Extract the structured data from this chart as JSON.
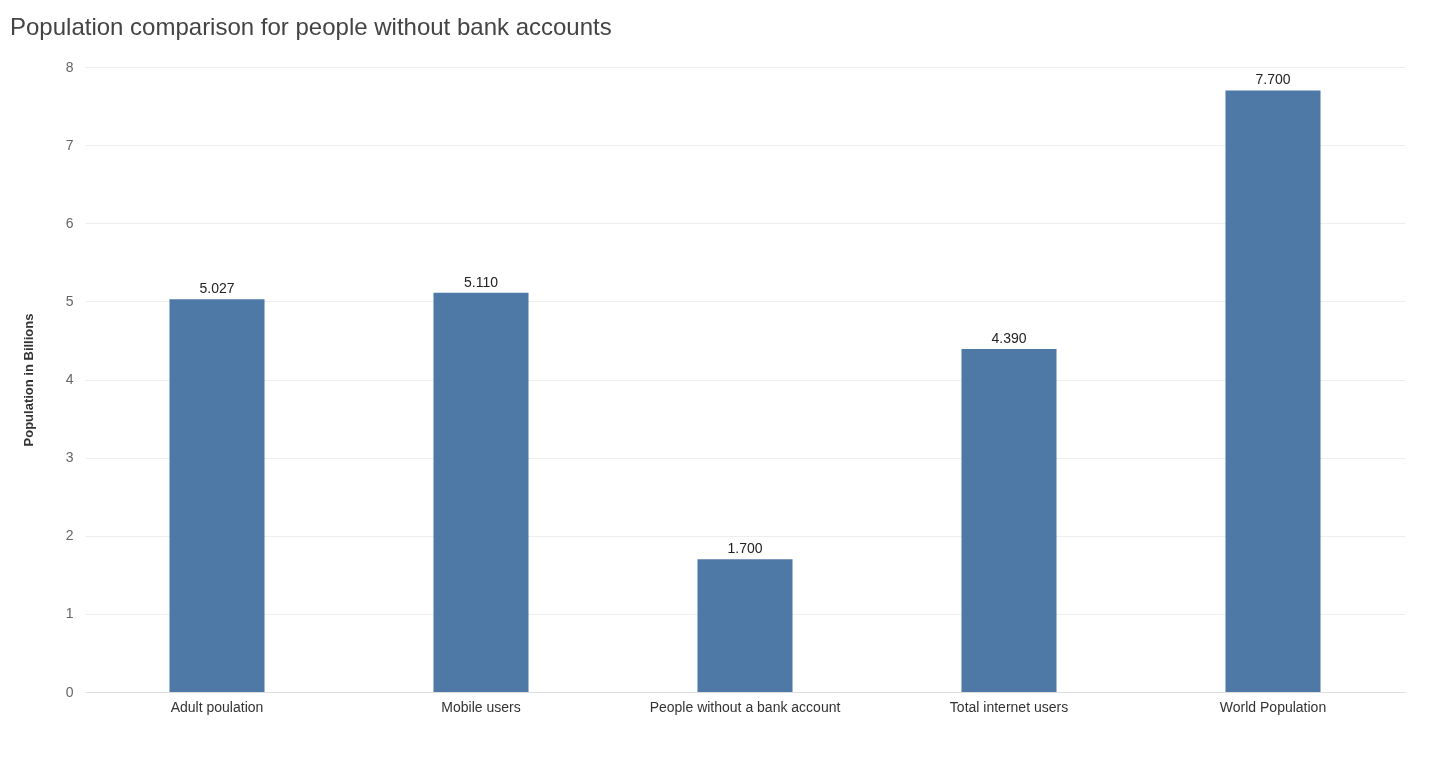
{
  "chart_data": {
    "type": "bar",
    "title": "Population comparison for people without bank accounts",
    "ylabel": "Population in Billions",
    "categories": [
      "Adult poulation",
      "Mobile users",
      "People without a bank account",
      "Total internet users",
      "World Population"
    ],
    "values": [
      5.027,
      5.11,
      1.7,
      4.39,
      7.7
    ],
    "value_labels": [
      "5.027",
      "5.110",
      "1.700",
      "4.390",
      "7.700"
    ],
    "color": "#4e79a7",
    "ylim": [
      0,
      8
    ],
    "yticks": [
      0,
      1,
      2,
      3,
      4,
      5,
      6,
      7,
      8
    ],
    "grid": "y"
  }
}
